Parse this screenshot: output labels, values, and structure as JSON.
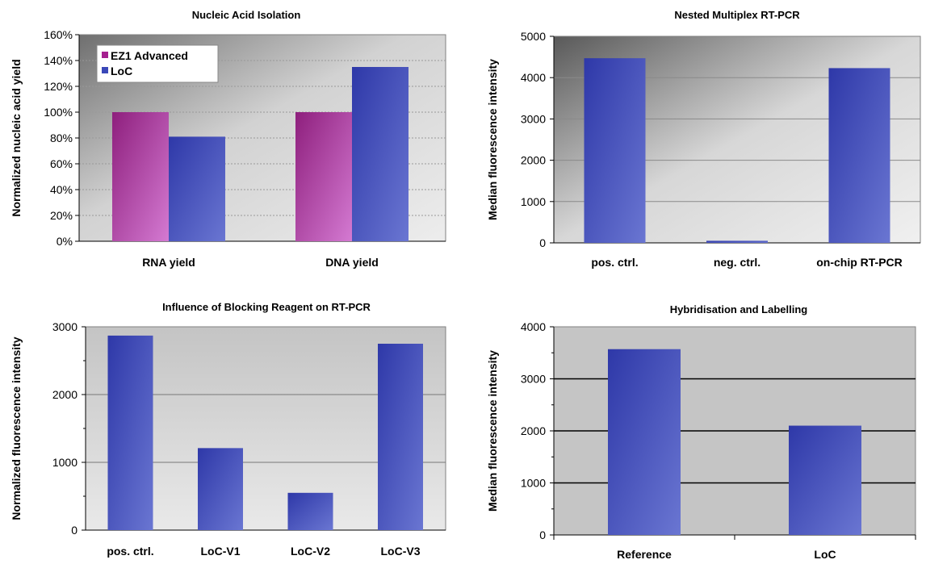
{
  "chart_data": [
    {
      "type": "bar",
      "title": "Nucleic Acid Isolation",
      "ylabel": "Normalized nucleic acid yield",
      "xlabel": "",
      "categories": [
        "RNA yield",
        "DNA yield"
      ],
      "series": [
        {
          "name": "EZ1 Advanced",
          "values": [
            100,
            100
          ]
        },
        {
          "name": "LoC",
          "values": [
            81,
            135
          ]
        }
      ],
      "ylim": [
        0,
        160
      ],
      "yticks": [
        "0%",
        "20%",
        "40%",
        "60%",
        "80%",
        "100%",
        "120%",
        "140%",
        "160%"
      ],
      "tick_values": [
        0,
        20,
        40,
        60,
        80,
        100,
        120,
        140,
        160
      ],
      "grid": true,
      "legend": "top-left",
      "colors": {
        "EZ1 Advanced": "#b0409e",
        "LoC": "#3a48b8"
      }
    },
    {
      "type": "bar",
      "title": "Nested Multiplex RT-PCR",
      "ylabel": "Median fluorescence intensity",
      "xlabel": "",
      "categories": [
        "pos. ctrl.",
        "neg. ctrl.",
        "on-chip RT-PCR"
      ],
      "values": [
        4470,
        50,
        4230
      ],
      "ylim": [
        0,
        5000
      ],
      "yticks": [
        "0",
        "1000",
        "2000",
        "3000",
        "4000",
        "5000"
      ],
      "tick_values": [
        0,
        1000,
        2000,
        3000,
        4000,
        5000
      ],
      "grid": true,
      "colors": {
        "bar": "#3a48b8"
      }
    },
    {
      "type": "bar",
      "title": "Influence of Blocking Reagent on RT-PCR",
      "ylabel": "Normalized fluorescence intensity",
      "xlabel": "",
      "categories": [
        "pos. ctrl.",
        "LoC-V1",
        "LoC-V2",
        "LoC-V3"
      ],
      "values": [
        2870,
        1210,
        550,
        2750
      ],
      "ylim": [
        0,
        3000
      ],
      "yticks": [
        "0",
        "1000",
        "2000",
        "3000"
      ],
      "tick_values": [
        0,
        1000,
        2000,
        3000
      ],
      "grid": true,
      "colors": {
        "bar": "#3a48b8"
      }
    },
    {
      "type": "bar",
      "title": "Hybridisation and Labelling",
      "ylabel": "Median fluorescence intensity",
      "xlabel": "",
      "categories": [
        "Reference",
        "LoC"
      ],
      "values": [
        3570,
        2100
      ],
      "ylim": [
        0,
        4000
      ],
      "yticks": [
        "0",
        "1000",
        "2000",
        "3000",
        "4000"
      ],
      "tick_values": [
        0,
        1000,
        2000,
        3000,
        4000
      ],
      "grid": true,
      "colors": {
        "bar": "#3a48b8"
      }
    }
  ]
}
